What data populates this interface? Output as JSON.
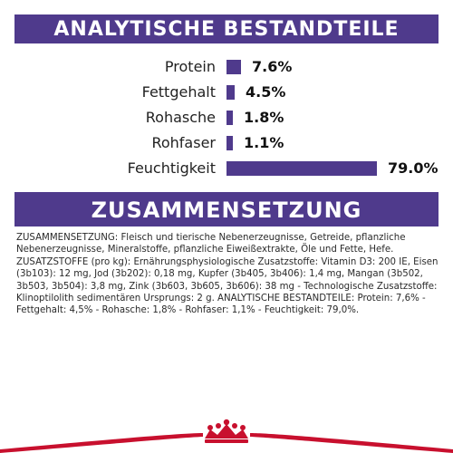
{
  "header": {
    "analytics_title": "ANALYTISCHE BESTANDTEILE"
  },
  "composition": {
    "title": "ZUSAMMENSETZUNG",
    "text": "ZUSAMMENSETZUNG: Fleisch und tierische Nebenerzeugnisse, Getreide, pflanzliche Nebenerzeugnisse, Mineralstoffe, pflanzliche Eiweißextrakte, Öle und Fette, Hefe. ZUSATZSTOFFE (pro kg): Ernährungsphysiologische Zusatzstoffe: Vitamin D3: 200 IE, Eisen (3b103): 12 mg, Jod (3b202): 0,18 mg, Kupfer (3b405, 3b406): 1,4 mg, Mangan (3b502, 3b503, 3b504): 3,8 mg, Zink (3b603, 3b605, 3b606): 38 mg - Technologische Zusatzstoffe: Klinoptilolith sedimentären Ursprungs: 2 g. ANALYTISCHE BESTANDTEILE: Protein: 7,6% - Fettgehalt: 4,5% - Rohasche: 1,8% - Rohfaser: 1,1% - Feuchtigkeit: 79,0%."
  },
  "chart_data": {
    "type": "bar",
    "orientation": "horizontal",
    "title": "ANALYTISCHE BESTANDTEILE",
    "categories": [
      "Protein",
      "Fettgehalt",
      "Rohasche",
      "Rohfaser",
      "Feuchtigkeit"
    ],
    "values": [
      7.6,
      4.5,
      1.8,
      1.1,
      79.0
    ],
    "value_labels": [
      "7.6%",
      "4.5%",
      "1.8%",
      "1.1%",
      "79.0%"
    ],
    "unit": "%",
    "grid": false,
    "bar_color": "#4f3a8c"
  },
  "colors": {
    "brand_purple": "#4f3a8c",
    "logo_red": "#c8102e"
  },
  "logo": {
    "icon": "royal-canin-crown-logo"
  }
}
